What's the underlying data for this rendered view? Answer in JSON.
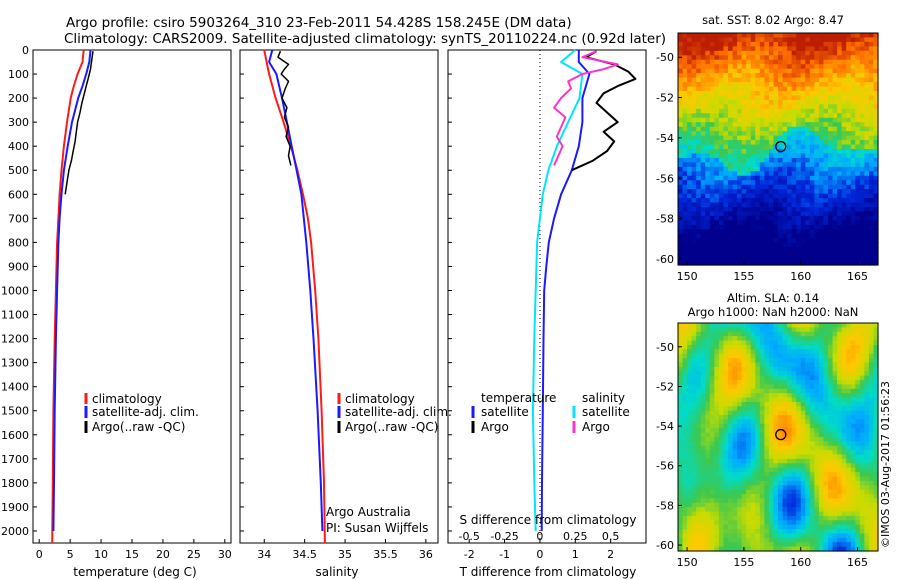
{
  "figure": {
    "title_line1": "Argo profile: csiro 5903264_310 23-Feb-2011 54.428S 158.245E (DM data)",
    "title_line2": "Climatology: CARS2009. Satellite-adjusted climatology: synTS_20110224.nc (0.92d later)",
    "attribution": "©IMOS 03-Aug-2017 01:56:23",
    "footer_line1": "Argo Australia",
    "footer_line2": "PI: Susan Wijffels"
  },
  "colors": {
    "climatology": "#ff1a1a",
    "satellite": "#1a1aff",
    "argo": "#000000",
    "salinity_sat": "#00e5ff",
    "salinity_argo": "#ff33cc"
  },
  "chart_data": [
    {
      "type": "line",
      "xlabel": "temperature (deg C)",
      "ylabel": "",
      "xlim": [
        -1,
        31
      ],
      "ylim": [
        2050,
        0
      ],
      "xticks": [
        0,
        5,
        10,
        15,
        20,
        25,
        30
      ],
      "yticks": [
        0,
        100,
        200,
        300,
        400,
        500,
        600,
        700,
        800,
        900,
        1000,
        1100,
        1200,
        1300,
        1400,
        1500,
        1600,
        1700,
        1800,
        1900,
        2000
      ],
      "legend": [
        "climatology",
        "satellite-adj. clim.",
        "Argo(..raw -QC)"
      ],
      "series": [
        {
          "name": "climatology",
          "y": [
            0,
            50,
            100,
            150,
            200,
            300,
            400,
            500,
            600,
            700,
            800,
            1000,
            1200,
            1500,
            1800,
            2050
          ],
          "x": [
            7.2,
            7.0,
            6.2,
            5.6,
            5.1,
            4.5,
            4.0,
            3.6,
            3.3,
            3.1,
            2.9,
            2.7,
            2.5,
            2.3,
            2.2,
            2.1
          ]
        },
        {
          "name": "satellite-adj. clim.",
          "y": [
            0,
            50,
            100,
            150,
            200,
            300,
            400,
            500,
            600,
            700,
            800,
            1000,
            1200,
            1500,
            1800,
            2000
          ],
          "x": [
            8.3,
            8.1,
            7.6,
            7.0,
            6.3,
            5.3,
            4.6,
            4.0,
            3.6,
            3.3,
            3.1,
            2.9,
            2.7,
            2.5,
            2.4,
            2.3
          ]
        },
        {
          "name": "Argo(..raw -QC)",
          "y": [
            5,
            40,
            80,
            120,
            150,
            180,
            220,
            260,
            300,
            340,
            380,
            420,
            460,
            500,
            550,
            600
          ],
          "x": [
            8.7,
            8.5,
            8.3,
            7.9,
            7.6,
            7.3,
            6.9,
            6.6,
            6.2,
            6.0,
            5.8,
            5.5,
            5.2,
            4.8,
            4.5,
            4.2
          ]
        }
      ]
    },
    {
      "type": "line",
      "xlabel": "salinity",
      "xlim": [
        33.7,
        36.15
      ],
      "ylim": [
        2050,
        0
      ],
      "xticks": [
        34,
        34.5,
        35,
        35.5,
        36
      ],
      "legend": [
        "climatology",
        "satellite-adj. clim.",
        "Argo(..raw -QC)"
      ],
      "series": [
        {
          "name": "climatology",
          "y": [
            0,
            100,
            200,
            300,
            400,
            500,
            600,
            700,
            800,
            1000,
            1200,
            1500,
            1800,
            2050
          ],
          "x": [
            34.0,
            34.06,
            34.14,
            34.24,
            34.33,
            34.41,
            34.48,
            34.54,
            34.58,
            34.63,
            34.67,
            34.71,
            34.74,
            34.75
          ]
        },
        {
          "name": "satellite-adj. clim.",
          "y": [
            0,
            50,
            100,
            200,
            300,
            400,
            500,
            600,
            700,
            800,
            1000,
            1200,
            1500,
            1800,
            2000
          ],
          "x": [
            34.1,
            34.06,
            34.15,
            34.22,
            34.28,
            34.34,
            34.4,
            34.46,
            34.49,
            34.52,
            34.57,
            34.61,
            34.66,
            34.7,
            34.72
          ]
        },
        {
          "name": "Argo(..raw -QC)",
          "y": [
            5,
            30,
            60,
            80,
            100,
            130,
            160,
            200,
            240,
            280,
            320,
            360,
            400,
            440,
            480
          ],
          "x": [
            34.2,
            34.17,
            34.3,
            34.25,
            34.21,
            34.3,
            34.26,
            34.22,
            34.28,
            34.25,
            34.3,
            34.27,
            34.32,
            34.3,
            34.33
          ]
        }
      ]
    },
    {
      "type": "line",
      "xlabel": "T difference from climatology",
      "top_axis_label": "S difference from climatology",
      "xlim": [
        -2.6,
        3.0
      ],
      "xticks": [
        -2,
        -1,
        0,
        1,
        2
      ],
      "s_ticks": [
        -0.5,
        -0.25,
        0,
        0.25,
        0.5
      ],
      "ylim": [
        2050,
        0
      ],
      "legend_temperature_title": "temperature",
      "legend_salinity_title": "salinity",
      "legend": [
        "satellite",
        "Argo",
        "satellite",
        "Argo"
      ],
      "series": [
        {
          "name": "temperature satellite",
          "y": [
            0,
            50,
            100,
            200,
            300,
            400,
            500,
            600,
            700,
            800,
            900,
            1000,
            1200,
            1500,
            1800,
            2000
          ],
          "x": [
            1.1,
            1.1,
            1.4,
            1.2,
            1.2,
            1.1,
            0.9,
            0.6,
            0.4,
            0.25,
            0.18,
            0.12,
            0.1,
            0.08,
            0.06,
            0.05
          ]
        },
        {
          "name": "temperature Argo",
          "y": [
            5,
            30,
            60,
            90,
            120,
            150,
            180,
            220,
            260,
            300,
            340,
            380,
            420,
            460,
            500
          ],
          "x": [
            1.6,
            1.3,
            2.1,
            2.5,
            2.7,
            2.2,
            1.8,
            1.6,
            1.9,
            2.2,
            1.8,
            2.1,
            1.9,
            1.5,
            0.9
          ]
        },
        {
          "name": "salinity satellite",
          "y": [
            0,
            50,
            100,
            200,
            300,
            400,
            500,
            600,
            800,
            1000,
            1200,
            1500,
            1800,
            2000
          ],
          "x": [
            0.25,
            0.15,
            0.3,
            0.28,
            0.2,
            0.12,
            0.06,
            0.02,
            -0.02,
            -0.03,
            -0.04,
            -0.05,
            -0.04,
            -0.03
          ]
        },
        {
          "name": "salinity Argo",
          "y": [
            5,
            30,
            60,
            80,
            100,
            130,
            160,
            200,
            240,
            280,
            320,
            360,
            400,
            440,
            480
          ],
          "x": [
            0.4,
            0.3,
            0.55,
            0.45,
            0.3,
            0.2,
            0.22,
            0.15,
            0.1,
            0.18,
            0.15,
            0.12,
            0.16,
            0.13,
            0.1
          ]
        }
      ]
    },
    {
      "type": "heatmap",
      "title": "sat. SST: 8.02 Argo: 8.47",
      "xlim": [
        149.2,
        166.8
      ],
      "ylim": [
        -60.3,
        -48.8
      ],
      "xticks": [
        150,
        155,
        160,
        165
      ],
      "yticks": [
        -50,
        -52,
        -54,
        -56,
        -58,
        -60
      ],
      "profile_lon": 158.245,
      "profile_lat": -54.428
    },
    {
      "type": "heatmap",
      "title_line1": "Altim. SLA: 0.14",
      "title_line2": "Argo h1000: NaN h2000: NaN",
      "xlim": [
        149.2,
        166.8
      ],
      "ylim": [
        -60.3,
        -48.8
      ],
      "xticks": [
        150,
        155,
        160,
        165
      ],
      "yticks": [
        -50,
        -52,
        -54,
        -56,
        -58,
        -60
      ],
      "profile_lon": 158.245,
      "profile_lat": -54.428
    }
  ]
}
